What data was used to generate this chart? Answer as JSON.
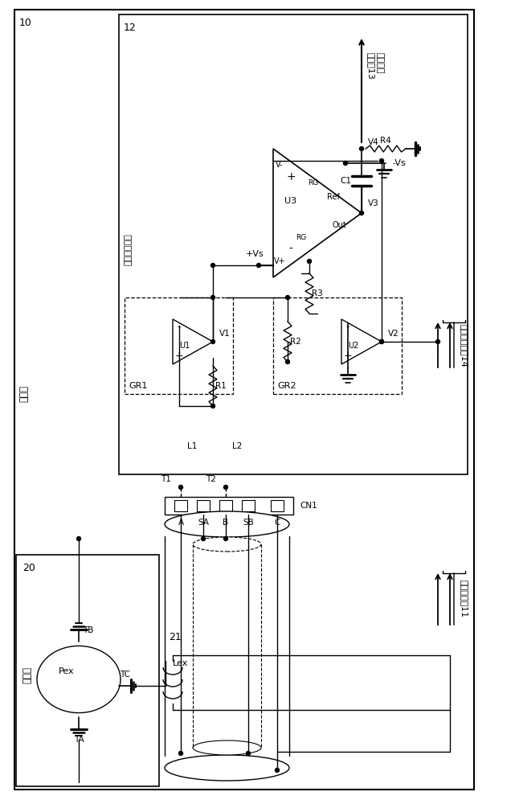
{
  "bg_color": "#ffffff",
  "labels": {
    "block10": "10",
    "block12": "12",
    "block20": "20",
    "block21": "21",
    "signal_amp": "信号放大电路",
    "converter": "转换器",
    "detector": "检测器",
    "to13": "至采样保\n持电路13",
    "to14": "至另检测电路14",
    "to11": "至励磁电路11",
    "GR1": "GR1",
    "GR2": "GR2",
    "U1": "U1",
    "U2": "U2",
    "U3": "U3",
    "V1": "V1",
    "V2": "V2",
    "V3": "V3",
    "V4": "V4",
    "R1": "R1",
    "R2": "R2",
    "R3": "R3",
    "R4": "R4",
    "C1": "C1",
    "L1": "L1",
    "L2": "L2",
    "T1": "T1",
    "T2": "T2",
    "CN1": "CN1",
    "A": "A",
    "SA": "SA",
    "B": "B",
    "SB": "SB",
    "C_pin": "C",
    "TA": "TA",
    "TB": "TB",
    "TC": "TC",
    "Pex": "Pex",
    "Lex": "Lex",
    "Out": "Out",
    "Ref": "Ref",
    "RG": "RG",
    "Vs_pos": "+Vs",
    "Vs_neg": "-Vs",
    "plus": "+",
    "minus": "-"
  }
}
